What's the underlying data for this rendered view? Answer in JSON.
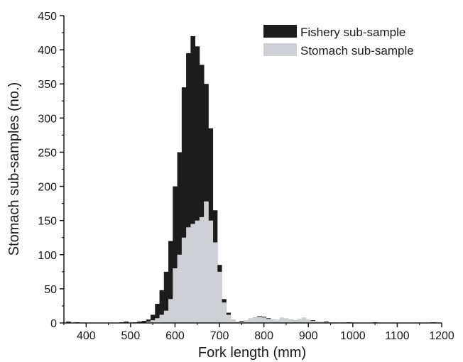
{
  "chart_data": {
    "type": "bar",
    "title": "",
    "xlabel": "Fork length (mm)",
    "ylabel": "Stomach sub-samples (no.)",
    "xlim": [
      350,
      1200
    ],
    "ylim": [
      0,
      450
    ],
    "bin_width": 10,
    "x_ticks": [
      400,
      500,
      600,
      700,
      800,
      900,
      1000,
      1100,
      1200
    ],
    "x_tick_labels": [
      "400",
      "500",
      "600",
      "700",
      "800",
      "900",
      "1000",
      "1100",
      "1200"
    ],
    "y_ticks": [
      0,
      50,
      100,
      150,
      200,
      250,
      300,
      350,
      400,
      450
    ],
    "y_tick_labels": [
      "0",
      "50",
      "100",
      "150",
      "200",
      "250",
      "300",
      "350",
      "400",
      "450"
    ],
    "grid": false,
    "legend_position": "top-right",
    "x": [
      360,
      370,
      380,
      390,
      400,
      410,
      420,
      430,
      440,
      450,
      460,
      470,
      480,
      490,
      500,
      510,
      520,
      530,
      540,
      550,
      560,
      570,
      580,
      590,
      600,
      610,
      620,
      630,
      640,
      650,
      660,
      670,
      680,
      690,
      700,
      710,
      720,
      730,
      740,
      750,
      760,
      770,
      780,
      790,
      800,
      810,
      820,
      830,
      840,
      850,
      860,
      870,
      880,
      890,
      900,
      910,
      920,
      930,
      940,
      950,
      960,
      970,
      980,
      990,
      1000,
      1010,
      1020,
      1030,
      1040,
      1050,
      1060,
      1070,
      1080,
      1090,
      1100,
      1110,
      1120,
      1130,
      1140,
      1150,
      1160,
      1170,
      1180,
      1190
    ],
    "series": [
      {
        "name": "Fishery sub-sample",
        "color": "#1c1c1c",
        "values": [
          2,
          0,
          1,
          0,
          0,
          0,
          0,
          0,
          0,
          0,
          0,
          0,
          1,
          2,
          0,
          1,
          2,
          3,
          5,
          12,
          28,
          48,
          75,
          120,
          200,
          250,
          345,
          395,
          420,
          405,
          378,
          350,
          285,
          165,
          85,
          35,
          15,
          5,
          2,
          3,
          2,
          5,
          8,
          10,
          9,
          7,
          5,
          3,
          4,
          6,
          5,
          4,
          3,
          2,
          3,
          4,
          2,
          1,
          2,
          1,
          1,
          0,
          1,
          1,
          0,
          0,
          0,
          0,
          0,
          1,
          0,
          0,
          0,
          0,
          0,
          0,
          0,
          0,
          0,
          0,
          0,
          0,
          1,
          0
        ]
      },
      {
        "name": "Stomach sub-sample",
        "color": "#cdd0d4",
        "values": [
          0,
          0,
          0,
          0,
          0,
          0,
          0,
          0,
          0,
          0,
          0,
          0,
          0,
          0,
          0,
          0,
          0,
          0,
          2,
          4,
          7,
          12,
          18,
          35,
          80,
          100,
          125,
          140,
          145,
          150,
          155,
          178,
          150,
          118,
          75,
          30,
          12,
          5,
          2,
          2,
          4,
          7,
          8,
          9,
          8,
          6,
          5,
          5,
          8,
          7,
          5,
          4,
          6,
          8,
          5,
          3,
          2,
          2,
          1,
          1,
          1,
          0,
          1,
          0,
          0,
          0,
          0,
          0,
          0,
          0,
          0,
          0,
          0,
          0,
          0,
          0,
          0,
          0,
          0,
          0,
          0,
          0,
          0,
          0
        ]
      }
    ]
  }
}
